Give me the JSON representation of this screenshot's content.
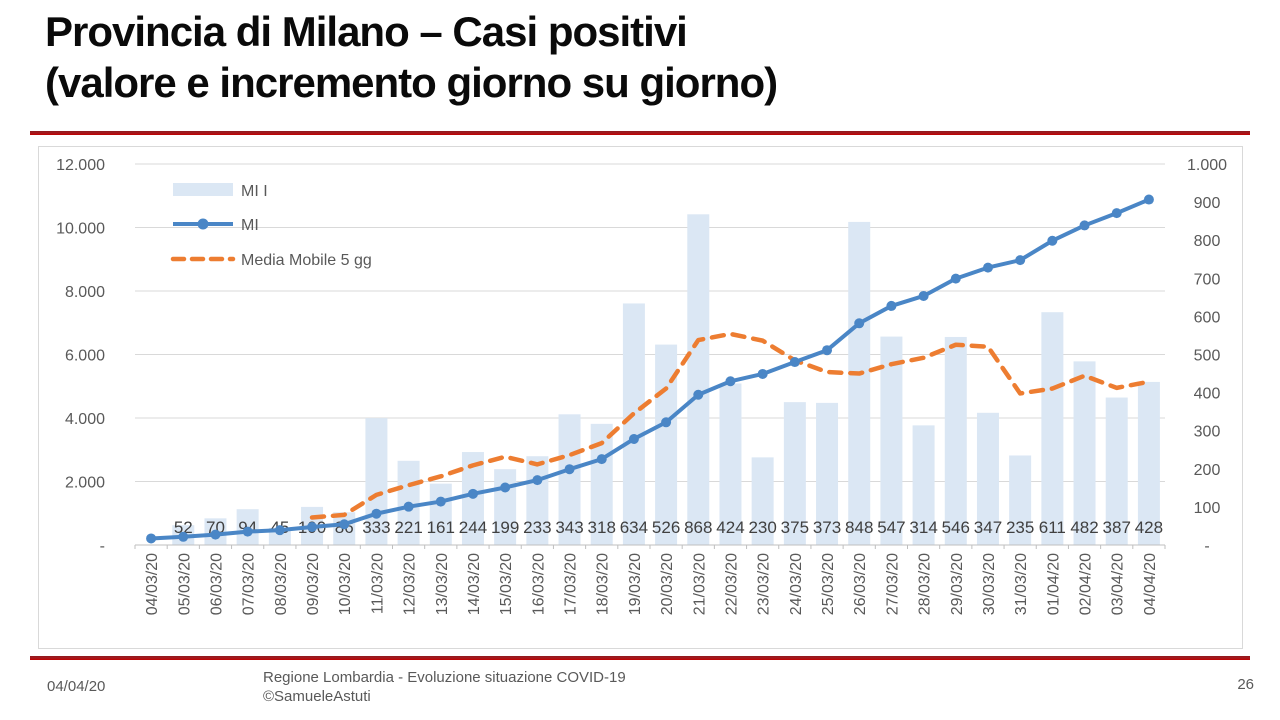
{
  "slide": {
    "title_line1": "Provincia di Milano – Casi positivi",
    "title_line2": "(valore e incremento giorno su giorno)",
    "footer": {
      "date": "04/04/20",
      "center_line1": "Regione Lombardia - Evoluzione situazione COVID-19",
      "center_line2": "©SamueleAstuti",
      "page_number": "26"
    }
  },
  "colors": {
    "bar_fill": "#dbe7f4",
    "line_blue": "#4a86c6",
    "line_orange": "#ed7d31",
    "gridline": "#d9d9d9",
    "axis_line": "#bfbfbf",
    "axis_text": "#595959",
    "data_label": "#404040",
    "rule_red": "#c00000"
  },
  "chart_data": {
    "type": "combo-bar-line",
    "title": "",
    "grid": true,
    "legend_position": "inside-top-left",
    "categories": [
      "04/03/20",
      "05/03/20",
      "06/03/20",
      "07/03/20",
      "08/03/20",
      "09/03/20",
      "10/03/20",
      "11/03/20",
      "12/03/20",
      "13/03/20",
      "14/03/20",
      "15/03/20",
      "16/03/20",
      "17/03/20",
      "18/03/20",
      "19/03/20",
      "20/03/20",
      "21/03/20",
      "22/03/20",
      "23/03/20",
      "24/03/20",
      "25/03/20",
      "26/03/20",
      "27/03/20",
      "28/03/20",
      "29/03/20",
      "30/03/20",
      "31/03/20",
      "01/04/20",
      "02/04/20",
      "03/04/20",
      "04/04/20"
    ],
    "series": [
      {
        "name": "MI I",
        "type": "bar",
        "axis": "right",
        "labels_visible": true,
        "values": [
          null,
          52,
          70,
          94,
          45,
          100,
          86,
          333,
          221,
          161,
          244,
          199,
          233,
          343,
          318,
          634,
          526,
          868,
          424,
          230,
          375,
          373,
          848,
          547,
          314,
          546,
          347,
          235,
          611,
          482,
          387,
          428
        ]
      },
      {
        "name": "MI",
        "type": "line",
        "axis": "left",
        "labels_visible": false,
        "values": [
          206,
          258,
          328,
          422,
          467,
          567,
          653,
          986,
          1207,
          1368,
          1612,
          1811,
          2044,
          2387,
          2705,
          3339,
          3865,
          4733,
          5157,
          5387,
          5762,
          6135,
          6983,
          7530,
          7844,
          8390,
          8737,
          8972,
          9583,
          10065,
          10452,
          10880
        ]
      },
      {
        "name": "Media Mobile 5 gg",
        "type": "line-dashed",
        "axis": "right",
        "labels_visible": false,
        "values": [
          null,
          null,
          null,
          null,
          null,
          72.2,
          79,
          131.6,
          157,
          180.2,
          209,
          231.6,
          211.6,
          236,
          267.4,
          345.4,
          410.8,
          537.8,
          554,
          536.4,
          484.6,
          454,
          450,
          474.6,
          491.4,
          525.6,
          520.4,
          397.8,
          410.6,
          444.2,
          412.4,
          428.6
        ]
      }
    ],
    "left_axis": {
      "min": 0,
      "max": 12000,
      "step": 2000,
      "tick_labels": [
        "-",
        "2.000",
        "4.000",
        "6.000",
        "8.000",
        "10.000",
        "12.000"
      ]
    },
    "right_axis": {
      "min": 0,
      "max": 1000,
      "step": 100,
      "tick_labels": [
        "-",
        "100",
        "200",
        "300",
        "400",
        "500",
        "600",
        "700",
        "800",
        "900",
        "1.000"
      ]
    }
  }
}
